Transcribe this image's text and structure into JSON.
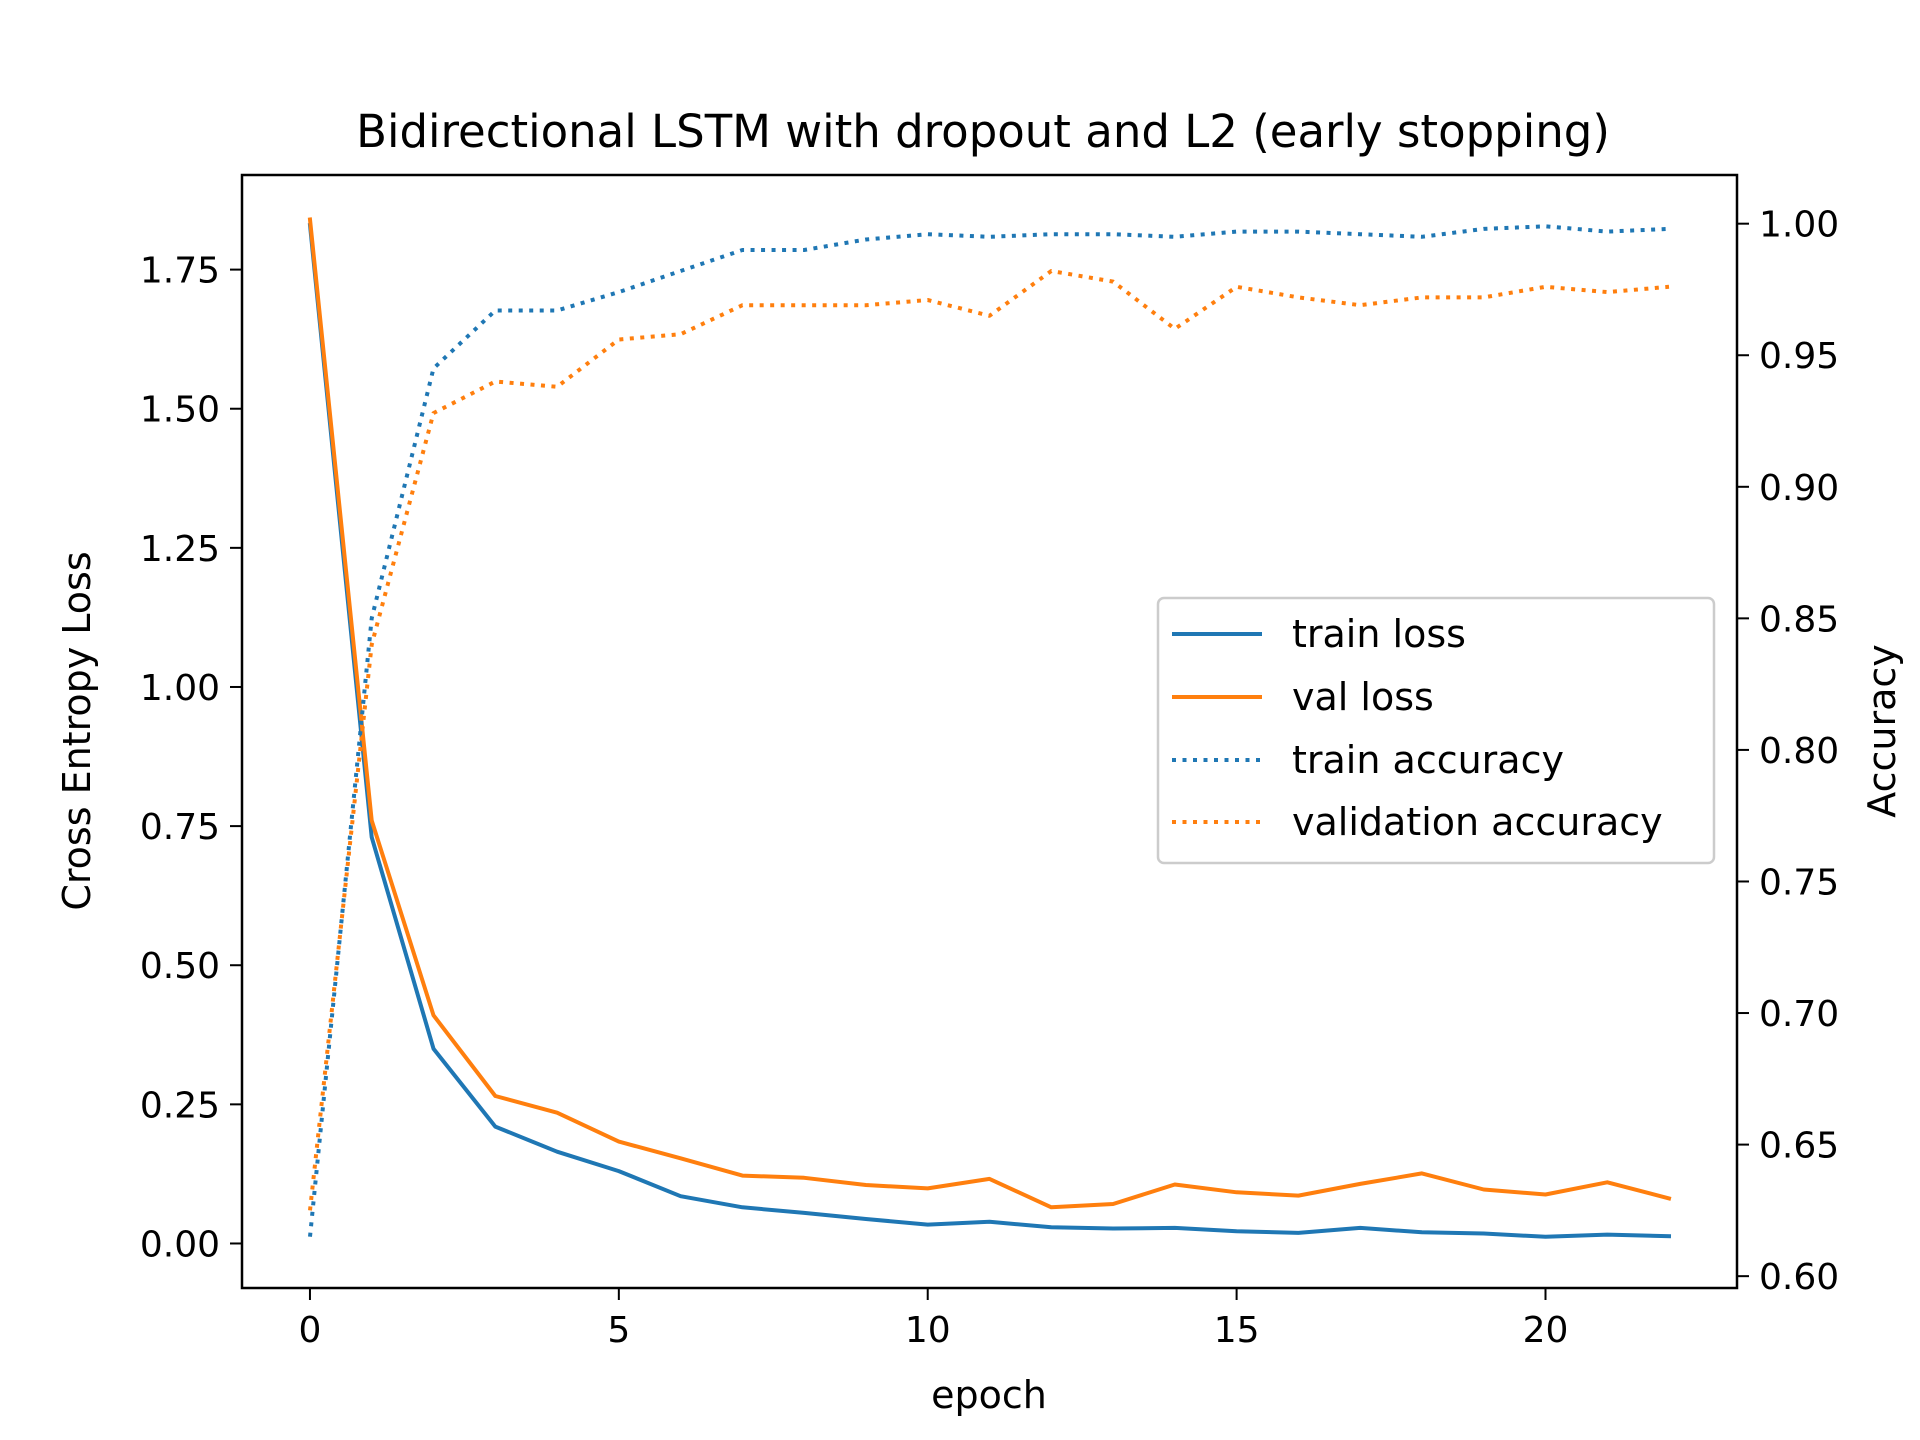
{
  "chart_data": {
    "type": "line",
    "title": "Bidirectional LSTM with dropout and L2 (early stopping)",
    "xlabel": "epoch",
    "ylabel_left": "Cross Entropy Loss",
    "ylabel_right": "Accuracy",
    "xlim": [
      -1.1,
      23.1
    ],
    "ylim_left": [
      -0.08,
      1.92
    ],
    "ylim_right": [
      0.5955,
      1.0185
    ],
    "x_ticks": [
      0,
      5,
      10,
      15,
      20
    ],
    "y_ticks_left": [
      0.0,
      0.25,
      0.5,
      0.75,
      1.0,
      1.25,
      1.5,
      1.75
    ],
    "y_ticks_right": [
      0.6,
      0.65,
      0.7,
      0.75,
      0.8,
      0.85,
      0.9,
      0.95,
      1.0
    ],
    "legend_position": "center-right",
    "grid": false,
    "x": [
      0,
      1,
      2,
      3,
      4,
      5,
      6,
      7,
      8,
      9,
      10,
      11,
      12,
      13,
      14,
      15,
      16,
      17,
      18,
      19,
      20,
      21,
      22
    ],
    "series": [
      {
        "name": "train loss",
        "axis": "left",
        "style": "solid",
        "color": "#1f77b4",
        "values": [
          1.83,
          0.73,
          0.35,
          0.21,
          0.165,
          0.13,
          0.085,
          0.065,
          0.055,
          0.044,
          0.034,
          0.039,
          0.029,
          0.027,
          0.028,
          0.022,
          0.019,
          0.028,
          0.02,
          0.018,
          0.012,
          0.016,
          0.013
        ]
      },
      {
        "name": "val loss",
        "axis": "left",
        "style": "solid",
        "color": "#ff7f0e",
        "values": [
          1.84,
          0.76,
          0.41,
          0.265,
          0.235,
          0.183,
          0.153,
          0.122,
          0.118,
          0.105,
          0.099,
          0.116,
          0.065,
          0.071,
          0.106,
          0.092,
          0.086,
          0.107,
          0.126,
          0.097,
          0.088,
          0.11,
          0.081
        ]
      },
      {
        "name": "train accuracy",
        "axis": "right",
        "style": "dotted",
        "color": "#1f77b4",
        "values": [
          0.615,
          0.85,
          0.945,
          0.967,
          0.967,
          0.974,
          0.982,
          0.99,
          0.99,
          0.994,
          0.996,
          0.995,
          0.996,
          0.996,
          0.995,
          0.997,
          0.997,
          0.996,
          0.995,
          0.998,
          0.999,
          0.997,
          0.998
        ]
      },
      {
        "name": "validation accuracy",
        "axis": "right",
        "style": "dotted",
        "color": "#ff7f0e",
        "values": [
          0.625,
          0.84,
          0.928,
          0.94,
          0.938,
          0.956,
          0.958,
          0.969,
          0.969,
          0.969,
          0.971,
          0.965,
          0.982,
          0.978,
          0.96,
          0.976,
          0.972,
          0.969,
          0.972,
          0.972,
          0.976,
          0.974,
          0.976
        ]
      }
    ]
  }
}
